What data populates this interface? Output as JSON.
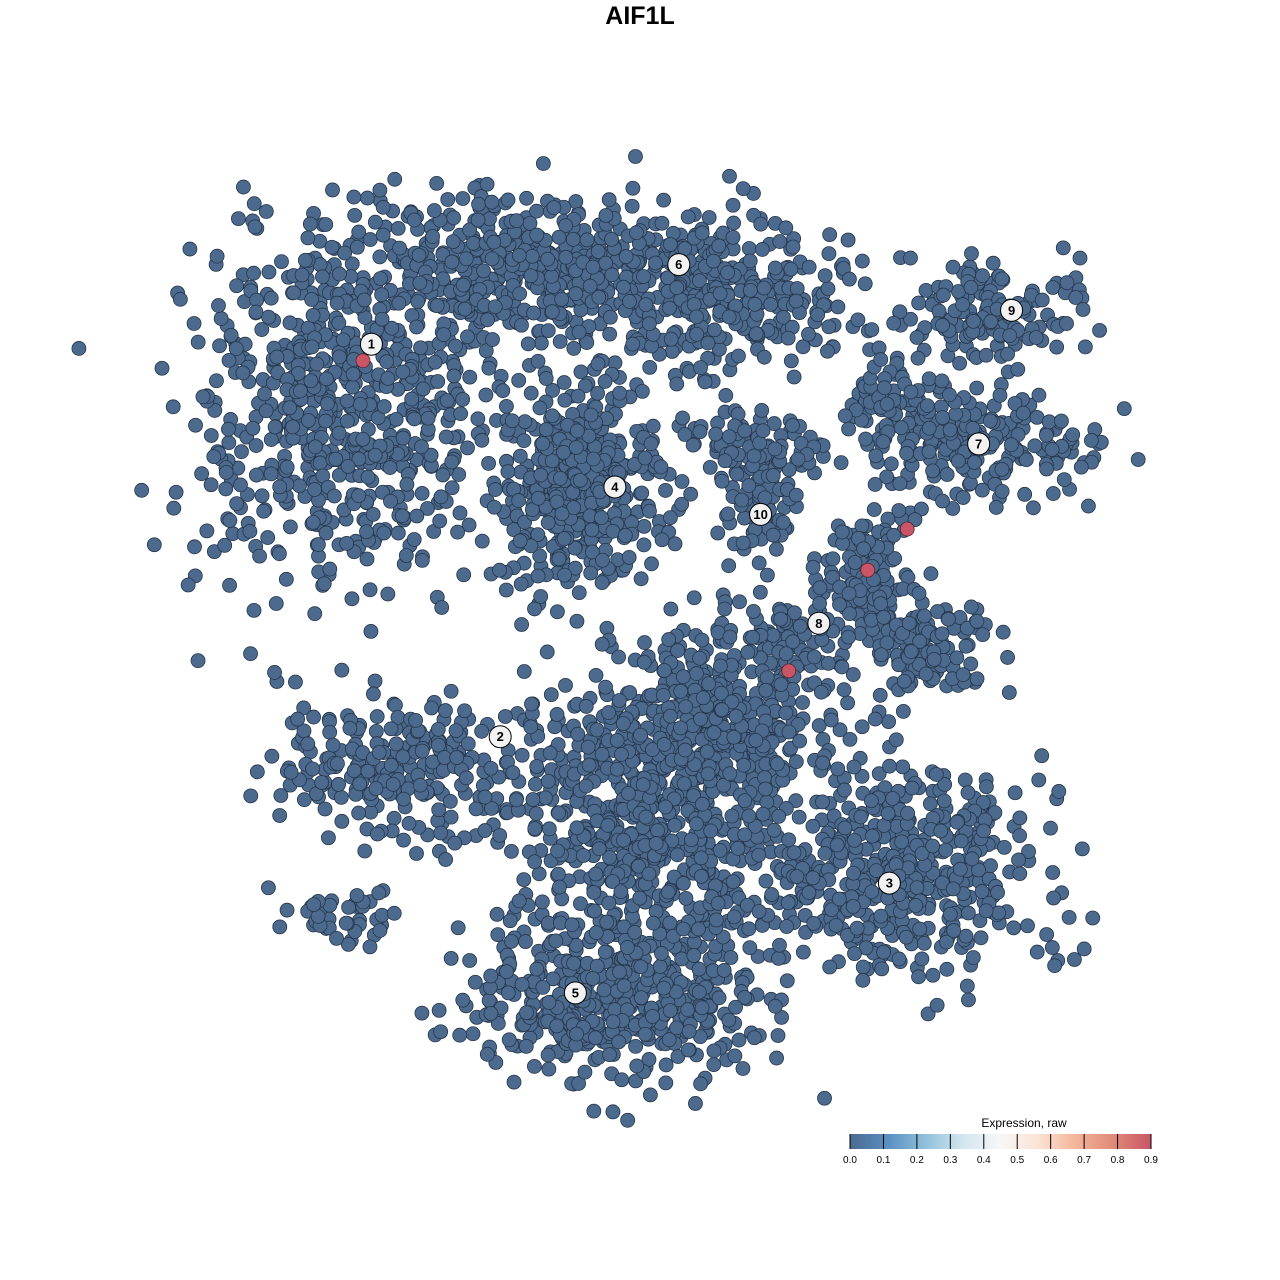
{
  "chart_data": {
    "type": "scatter",
    "title": "AIF1L",
    "xlabel": "",
    "ylabel": "",
    "axes_visible": false,
    "grid": false,
    "point_color_default": "#4b6a8e",
    "cluster_labels": [
      {
        "label": "1",
        "x": -30.7,
        "y": 32.0
      },
      {
        "label": "2",
        "x": -17.0,
        "y": -10.9
      },
      {
        "label": "3",
        "x": 24.4,
        "y": -26.9
      },
      {
        "label": "4",
        "x": -4.8,
        "y": 16.4
      },
      {
        "label": "5",
        "x": -9.0,
        "y": -38.9
      },
      {
        "label": "6",
        "x": 2.0,
        "y": 40.7
      },
      {
        "label": "7",
        "x": 33.9,
        "y": 21.1
      },
      {
        "label": "8",
        "x": 16.9,
        "y": 1.5
      },
      {
        "label": "9",
        "x": 37.4,
        "y": 35.7
      },
      {
        "label": "10",
        "x": 10.7,
        "y": 13.4
      }
    ],
    "expressing_points": [
      {
        "x": -31.6,
        "y": 30.2,
        "value": 0.9
      },
      {
        "x": 26.3,
        "y": 11.8,
        "value": 0.9
      },
      {
        "x": 22.1,
        "y": 7.3,
        "value": 0.9
      },
      {
        "x": 13.7,
        "y": -3.7,
        "value": 0.9
      }
    ],
    "legend": {
      "title": "Expression, raw",
      "placement": "bottom-right",
      "ticks": [
        "0.0",
        "0.1",
        "0.2",
        "0.3",
        "0.4",
        "0.5",
        "0.6",
        "0.7",
        "0.8",
        "0.9"
      ],
      "range": [
        0,
        0.9
      ],
      "colors": [
        "#4a6a90",
        "#5a8fc2",
        "#8fc0db",
        "#d2e6f0",
        "#f7f7f7",
        "#fbe3d6",
        "#f4b49a",
        "#e08a78",
        "#c95566"
      ]
    }
  }
}
